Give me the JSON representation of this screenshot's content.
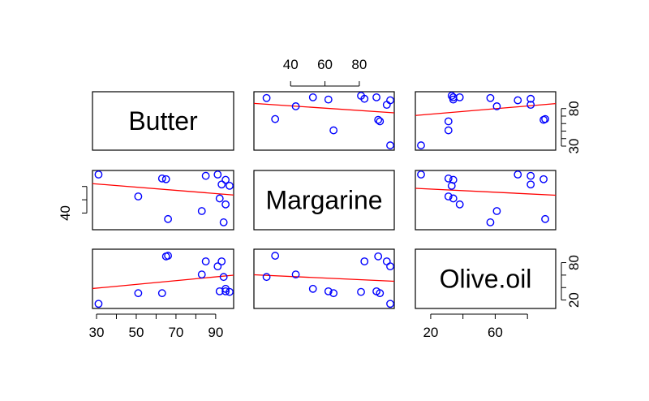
{
  "chart_data": {
    "type": "scatter",
    "plot_kind": "pairs scatterplot matrix with least-squares lines",
    "variables": [
      "Butter",
      "Margarine",
      "Olive.oil"
    ],
    "ranges": {
      "Butter": [
        30,
        97
      ],
      "Margarine": [
        21,
        98
      ],
      "Olive.oil": [
        13,
        95
      ]
    },
    "tick_labels": {
      "Butter": [
        "30",
        "50",
        "70",
        "90"
      ],
      "Margarine": [
        "40",
        "60",
        "80"
      ],
      "Olive.oil": [
        "20",
        "60"
      ]
    },
    "tick_labels_right": {
      "Butter": [
        "30",
        "80"
      ],
      "Olive.oil": [
        "20",
        "80"
      ]
    },
    "data": {
      "Butter": [
        31,
        51,
        63,
        65,
        66,
        83,
        85,
        91,
        92,
        93,
        94,
        95,
        95,
        97
      ],
      "Margarine": [
        98,
        65,
        92,
        91,
        31,
        43,
        96,
        98,
        62,
        83,
        26,
        53,
        90,
        81
      ],
      "Olive.oil": [
        14,
        31,
        31,
        90,
        91,
        61,
        82,
        74,
        34,
        82,
        57,
        38,
        34,
        33
      ]
    },
    "colors": {
      "points": "#0000ff",
      "regression_line": "#ff0000",
      "frame": "#000000"
    },
    "grid": false,
    "legend": "none"
  }
}
